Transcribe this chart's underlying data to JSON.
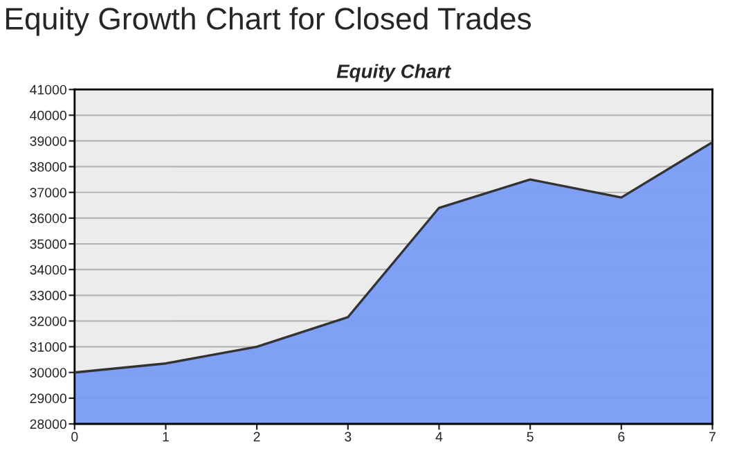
{
  "chart_data": {
    "type": "area",
    "title": "Equity Growth Chart for Closed Trades",
    "subtitle": "Equity Chart",
    "x": [
      0,
      1,
      2,
      3,
      4,
      5,
      6,
      7
    ],
    "values": [
      30000,
      30350,
      31000,
      32150,
      36400,
      37500,
      36800,
      38950
    ],
    "color": "#7a9cf5",
    "xlim": [
      0,
      7
    ],
    "xticks": [
      0,
      1,
      2,
      3,
      4,
      5,
      6,
      7
    ],
    "ylim": [
      28000,
      41000
    ],
    "yticks": [
      28000,
      29000,
      30000,
      31000,
      32000,
      33000,
      34000,
      35000,
      36000,
      37000,
      38000,
      39000,
      40000,
      41000
    ],
    "grid": "y"
  }
}
